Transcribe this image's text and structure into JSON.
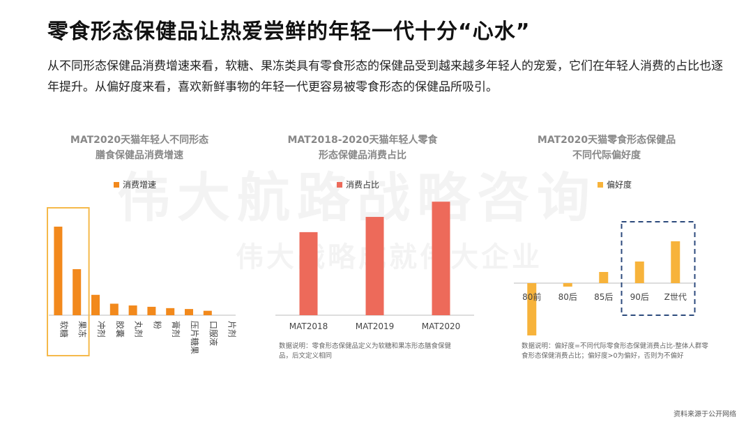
{
  "title": "零食形态保健品让热爱尝鲜的年轻一代十分“心水”",
  "subtitle": "从不同形态保健品消费增速来看，软糖、果冻类具有零食形态的保健品受到越来越多年轻人的宠爱，它们在年轻人消费的占比也逐年提升。从偏好度来看，喜欢新鲜事物的年轻一代更容易被零食形态的保健品所吸引。",
  "watermark": {
    "line1": "伟大航路战略咨询",
    "line2": "伟大战略成就伟大企业"
  },
  "colors": {
    "orange": "#f2891c",
    "red": "#ed6a5a",
    "yellow": "#f7b33b",
    "box_orange": "#f5b94a",
    "box_navy": "#2c4a7c"
  },
  "source": "资料来源于公开网络",
  "chart_data": [
    {
      "type": "bar",
      "title_lines": [
        "MAT2020天猫年轻人不同形态",
        "膳食保健品消费增速"
      ],
      "legend": "消费增速",
      "categories": [
        "软糖",
        "果冻",
        "冲剂",
        "胶囊",
        "丸剂",
        "粉",
        "膏剂",
        "压片糖果",
        "口服液",
        "片剂"
      ],
      "values": [
        100,
        52,
        23,
        13,
        11,
        9.5,
        8,
        7,
        5,
        0
      ],
      "highlight": [
        "软糖",
        "果冻"
      ]
    },
    {
      "type": "bar",
      "title_lines": [
        "MAT2018-2020天猫年轻人零食",
        "形态保健品消费占比"
      ],
      "legend": "消费占比",
      "categories": [
        "MAT2018",
        "MAT2019",
        "MAT2020"
      ],
      "values": [
        60,
        71,
        82
      ],
      "note": "数据说明：零食形态保健品定义为软糖和果冻形态膳食保健品，后文定义相同"
    },
    {
      "type": "bar",
      "title_lines": [
        "MAT2020天猫零食形态保健品",
        "不同代际偏好度"
      ],
      "legend": "偏好度",
      "categories": [
        "80前",
        "80后",
        "85后",
        "90后",
        "Z世代"
      ],
      "values": [
        -0.75,
        -0.05,
        0.16,
        0.31,
        0.6
      ],
      "highlight": [
        "90后",
        "Z世代"
      ],
      "note": "数据说明：偏好度=不同代际零食形态保健消费占比-整体人群零食形态保健消费占比；偏好度>0为偏好，否则为不偏好"
    }
  ]
}
